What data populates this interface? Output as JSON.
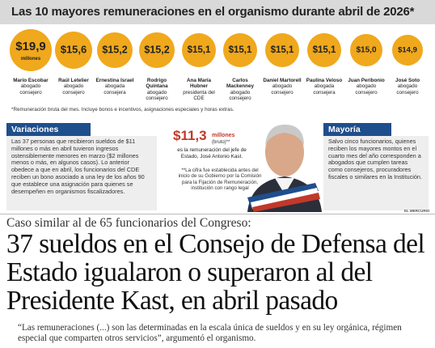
{
  "header": {
    "title": "Las 10 mayores remuneraciones en el organismo durante abril de 2026*"
  },
  "salaries": [
    {
      "amount": "$19,9",
      "unit": "millones",
      "name": "Mario Escobar",
      "role": "abogado consejero"
    },
    {
      "amount": "$15,6",
      "name": "Raúl Letelier",
      "role": "abogado consejero"
    },
    {
      "amount": "$15,2",
      "name": "Ernestina Israel",
      "role": "abogada consejera"
    },
    {
      "amount": "$15,2",
      "name": "Rodrigo Quintana",
      "role": "abogado consejero"
    },
    {
      "amount": "$15,1",
      "name": "Ana María Hubner",
      "role": "presidenta del CDE"
    },
    {
      "amount": "$15,1",
      "name": "Carlos Mackenney",
      "role": "abogado consejero"
    },
    {
      "amount": "$15,1",
      "name": "Daniel Martorell",
      "role": "abogado consejero"
    },
    {
      "amount": "$15,1",
      "name": "Paulina Veloso",
      "role": "abogada consejera"
    },
    {
      "amount": "$15,0",
      "name": "Juan Peribonio",
      "role": "abogado consejero"
    },
    {
      "amount": "$14,9",
      "name": "José Soto",
      "role": "abogado consejero"
    }
  ],
  "footnote": "*Remuneración bruta del mes. Incluye bonos e incentivos, asignaciones especiales y horas extras.",
  "variaciones": {
    "title": "Variaciones",
    "text": "Las 37 personas que recibieron sueldos de $11 millones o más en abril tuvieron ingresos ostensiblemente menores en marzo ($2 millones menos o más, en algunos casos). Lo anterior obedece a que en abril, los funcionarios del CDE reciben un bono asociado a una ley de los años 90 que establece una asignación para quienes se desempeñen en organismos fiscalizadores."
  },
  "presidente": {
    "amount": "$11,3",
    "unit": "millones",
    "qualifier": "(bruto)**",
    "description": "es la remuneración del jefe de Estado, José Antonio Kast.",
    "note": "**La cifra fue establecida antes del inicio de su Gobierno por la Comisión para la Fijación de Remuneración, institución con rango legal"
  },
  "mayoria": {
    "title": "Mayoría",
    "text": "Salvo cinco funcionarios, quienes reciben los mayores montos en el cuarto mes del año corresponden a abogados que cumplen tareas como consejeros, procuradores fiscales o similares en la Institución."
  },
  "credit": "EL MERCURIO",
  "article": {
    "kicker": "Caso similar al de 65 funcionarios del Congreso:",
    "headline": "37 sueldos en el Consejo de Defensa del Estado igualaron o superaron al del Presidente Kast, en abril pasado",
    "quote": "“Las remuneraciones (...) son las determinadas en la escala única de sueldos y en su ley orgánica, régimen especial que comparten otros servicios”, argumentó el organismo."
  }
}
